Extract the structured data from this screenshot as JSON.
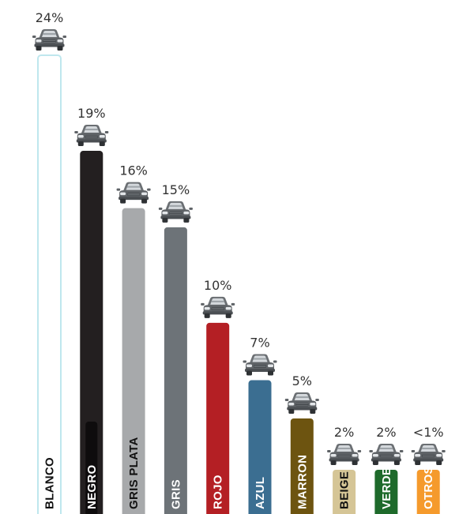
{
  "chart_data": {
    "type": "bar",
    "title": "",
    "xlabel": "",
    "ylabel": "",
    "ylim": [
      0,
      24
    ],
    "grid": false,
    "legend": "none",
    "icon": "car-icon",
    "categories": [
      "BLANCO",
      "NEGRO",
      "GRIS PLATA",
      "GRIS",
      "ROJO",
      "AZUL",
      "MARRON",
      "BEIGE",
      "VERDE",
      "OTROS"
    ],
    "values": [
      24,
      19,
      16,
      15,
      10,
      7,
      5,
      2,
      2,
      1
    ],
    "labels": [
      "24%",
      "19%",
      "16%",
      "15%",
      "10%",
      "7%",
      "5%",
      "2%",
      "2%",
      "<1%"
    ],
    "colors": [
      "#ffffff",
      "#231f20",
      "#a7a9ab",
      "#6d7378",
      "#b41f24",
      "#3b6e91",
      "#6d5410",
      "#d5c596",
      "#1e6a2b",
      "#f59a2c"
    ],
    "label_colors": [
      "#111111",
      "#ffffff",
      "#111111",
      "#ffffff",
      "#ffffff",
      "#ffffff",
      "#ffffff",
      "#111111",
      "#ffffff",
      "#ffffff"
    ]
  }
}
